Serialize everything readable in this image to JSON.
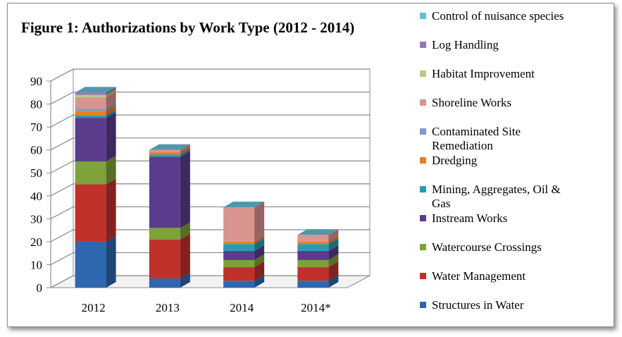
{
  "chart_data": {
    "type": "bar",
    "stacked": true,
    "three_d": true,
    "title": "Figure 1: Authorizations by Work Type (2012 - 2014)",
    "categories": [
      "2012",
      "2013",
      "2014",
      "2014*"
    ],
    "ylim": [
      0,
      90
    ],
    "yticks": [
      "0",
      "10",
      "20",
      "30",
      "40",
      "50",
      "60",
      "70",
      "80",
      "90"
    ],
    "grid": true,
    "legend_position": "right",
    "series": [
      {
        "name": "Structures in Water",
        "color": "#2e67ad",
        "values": [
          20,
          4,
          3,
          3
        ]
      },
      {
        "name": "Water Management",
        "color": "#c0312c",
        "values": [
          25,
          17,
          6,
          6
        ]
      },
      {
        "name": "Watercourse Crossings",
        "color": "#7ea23a",
        "values": [
          10,
          5,
          3,
          3
        ]
      },
      {
        "name": "Instream Works",
        "color": "#5b3c8c",
        "values": [
          19,
          31,
          4,
          4
        ]
      },
      {
        "name": "Mining, Aggregates, Oil & Gas",
        "color": "#2a9bb3",
        "values": [
          1,
          1,
          3,
          3
        ]
      },
      {
        "name": "Dredging",
        "color": "#e9801c",
        "values": [
          2,
          1,
          1,
          1
        ]
      },
      {
        "name": "Contaminated Site Remediation",
        "color": "#7d9bcc",
        "values": [
          1,
          0,
          0,
          0
        ]
      },
      {
        "name": "Shoreline Works",
        "color": "#d99490",
        "values": [
          5,
          1,
          15,
          3
        ]
      },
      {
        "name": "Habitat Improvement",
        "color": "#b4cd82",
        "values": [
          1,
          0,
          0,
          0
        ]
      },
      {
        "name": "Log Handling",
        "color": "#9478b6",
        "values": [
          1,
          0,
          0,
          0
        ]
      },
      {
        "name": "Control of nuisance species",
        "color": "#68c0d4",
        "values": [
          0,
          0,
          0,
          0
        ]
      }
    ]
  },
  "legend": [
    {
      "lines": [
        "Control of nuisance species"
      ],
      "color": "#68c0d4"
    },
    {
      "lines": [
        "Log Handling"
      ],
      "color": "#9478b6"
    },
    {
      "lines": [
        "Habitat Improvement"
      ],
      "color": "#b4cd82"
    },
    {
      "lines": [
        "Shoreline Works"
      ],
      "color": "#d99490"
    },
    {
      "lines": [
        "Contaminated Site",
        "Remediation"
      ],
      "color": "#7d9bcc"
    },
    {
      "lines": [
        "Dredging"
      ],
      "color": "#e9801c"
    },
    {
      "lines": [
        "Mining, Aggregates, Oil &",
        "Gas"
      ],
      "color": "#2a9bb3"
    },
    {
      "lines": [
        "Instream Works"
      ],
      "color": "#5b3c8c"
    },
    {
      "lines": [
        "Watercourse Crossings"
      ],
      "color": "#7ea23a"
    },
    {
      "lines": [
        "Water Management"
      ],
      "color": "#c0312c"
    },
    {
      "lines": [
        "Structures in Water"
      ],
      "color": "#2e67ad"
    }
  ]
}
